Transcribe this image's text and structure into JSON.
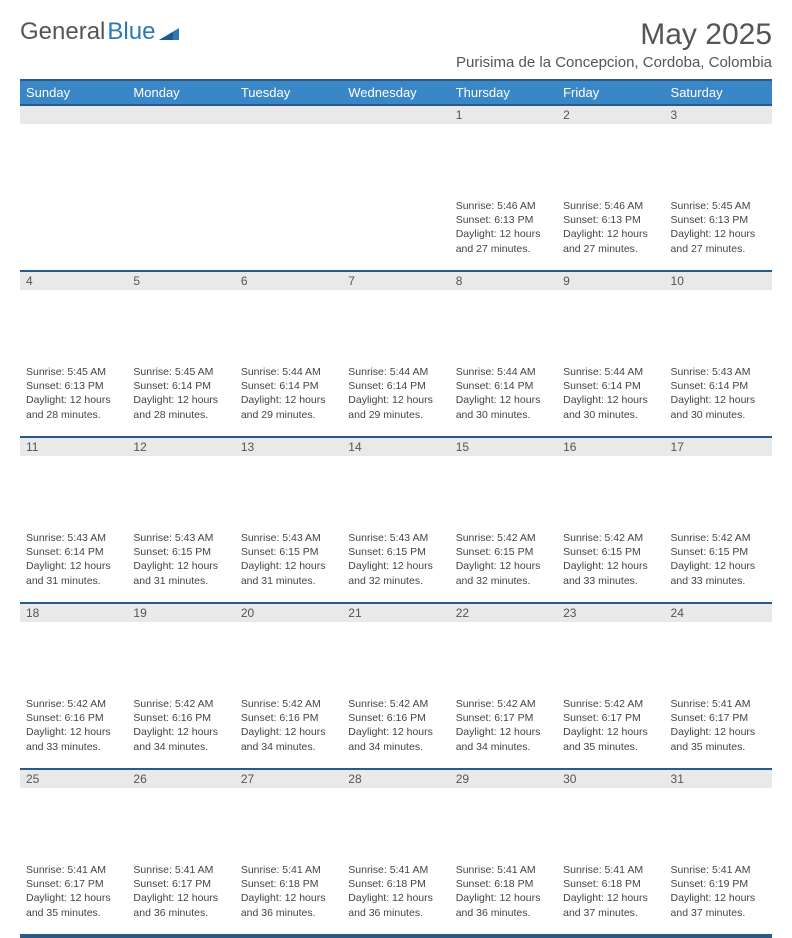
{
  "brand": {
    "part1": "General",
    "part2": "Blue"
  },
  "title": "May 2025",
  "location": "Purisima de la Concepcion, Cordoba, Colombia",
  "colors": {
    "header_bg": "#3a87c7",
    "header_text": "#ffffff",
    "border": "#2a5b88",
    "daynum_bg": "#e9e9e9",
    "text": "#444444",
    "logo_blue": "#2a7ab9",
    "title_color": "#555555"
  },
  "weekdays": [
    "Sunday",
    "Monday",
    "Tuesday",
    "Wednesday",
    "Thursday",
    "Friday",
    "Saturday"
  ],
  "weeks": [
    [
      null,
      null,
      null,
      null,
      {
        "d": "1",
        "sr": "5:46 AM",
        "ss": "6:13 PM",
        "dl": "12 hours and 27 minutes."
      },
      {
        "d": "2",
        "sr": "5:46 AM",
        "ss": "6:13 PM",
        "dl": "12 hours and 27 minutes."
      },
      {
        "d": "3",
        "sr": "5:45 AM",
        "ss": "6:13 PM",
        "dl": "12 hours and 27 minutes."
      }
    ],
    [
      {
        "d": "4",
        "sr": "5:45 AM",
        "ss": "6:13 PM",
        "dl": "12 hours and 28 minutes."
      },
      {
        "d": "5",
        "sr": "5:45 AM",
        "ss": "6:14 PM",
        "dl": "12 hours and 28 minutes."
      },
      {
        "d": "6",
        "sr": "5:44 AM",
        "ss": "6:14 PM",
        "dl": "12 hours and 29 minutes."
      },
      {
        "d": "7",
        "sr": "5:44 AM",
        "ss": "6:14 PM",
        "dl": "12 hours and 29 minutes."
      },
      {
        "d": "8",
        "sr": "5:44 AM",
        "ss": "6:14 PM",
        "dl": "12 hours and 30 minutes."
      },
      {
        "d": "9",
        "sr": "5:44 AM",
        "ss": "6:14 PM",
        "dl": "12 hours and 30 minutes."
      },
      {
        "d": "10",
        "sr": "5:43 AM",
        "ss": "6:14 PM",
        "dl": "12 hours and 30 minutes."
      }
    ],
    [
      {
        "d": "11",
        "sr": "5:43 AM",
        "ss": "6:14 PM",
        "dl": "12 hours and 31 minutes."
      },
      {
        "d": "12",
        "sr": "5:43 AM",
        "ss": "6:15 PM",
        "dl": "12 hours and 31 minutes."
      },
      {
        "d": "13",
        "sr": "5:43 AM",
        "ss": "6:15 PM",
        "dl": "12 hours and 31 minutes."
      },
      {
        "d": "14",
        "sr": "5:43 AM",
        "ss": "6:15 PM",
        "dl": "12 hours and 32 minutes."
      },
      {
        "d": "15",
        "sr": "5:42 AM",
        "ss": "6:15 PM",
        "dl": "12 hours and 32 minutes."
      },
      {
        "d": "16",
        "sr": "5:42 AM",
        "ss": "6:15 PM",
        "dl": "12 hours and 33 minutes."
      },
      {
        "d": "17",
        "sr": "5:42 AM",
        "ss": "6:15 PM",
        "dl": "12 hours and 33 minutes."
      }
    ],
    [
      {
        "d": "18",
        "sr": "5:42 AM",
        "ss": "6:16 PM",
        "dl": "12 hours and 33 minutes."
      },
      {
        "d": "19",
        "sr": "5:42 AM",
        "ss": "6:16 PM",
        "dl": "12 hours and 34 minutes."
      },
      {
        "d": "20",
        "sr": "5:42 AM",
        "ss": "6:16 PM",
        "dl": "12 hours and 34 minutes."
      },
      {
        "d": "21",
        "sr": "5:42 AM",
        "ss": "6:16 PM",
        "dl": "12 hours and 34 minutes."
      },
      {
        "d": "22",
        "sr": "5:42 AM",
        "ss": "6:17 PM",
        "dl": "12 hours and 34 minutes."
      },
      {
        "d": "23",
        "sr": "5:42 AM",
        "ss": "6:17 PM",
        "dl": "12 hours and 35 minutes."
      },
      {
        "d": "24",
        "sr": "5:41 AM",
        "ss": "6:17 PM",
        "dl": "12 hours and 35 minutes."
      }
    ],
    [
      {
        "d": "25",
        "sr": "5:41 AM",
        "ss": "6:17 PM",
        "dl": "12 hours and 35 minutes."
      },
      {
        "d": "26",
        "sr": "5:41 AM",
        "ss": "6:17 PM",
        "dl": "12 hours and 36 minutes."
      },
      {
        "d": "27",
        "sr": "5:41 AM",
        "ss": "6:18 PM",
        "dl": "12 hours and 36 minutes."
      },
      {
        "d": "28",
        "sr": "5:41 AM",
        "ss": "6:18 PM",
        "dl": "12 hours and 36 minutes."
      },
      {
        "d": "29",
        "sr": "5:41 AM",
        "ss": "6:18 PM",
        "dl": "12 hours and 36 minutes."
      },
      {
        "d": "30",
        "sr": "5:41 AM",
        "ss": "6:18 PM",
        "dl": "12 hours and 37 minutes."
      },
      {
        "d": "31",
        "sr": "5:41 AM",
        "ss": "6:19 PM",
        "dl": "12 hours and 37 minutes."
      }
    ]
  ],
  "labels": {
    "sunrise": "Sunrise:",
    "sunset": "Sunset:",
    "daylight": "Daylight:"
  }
}
